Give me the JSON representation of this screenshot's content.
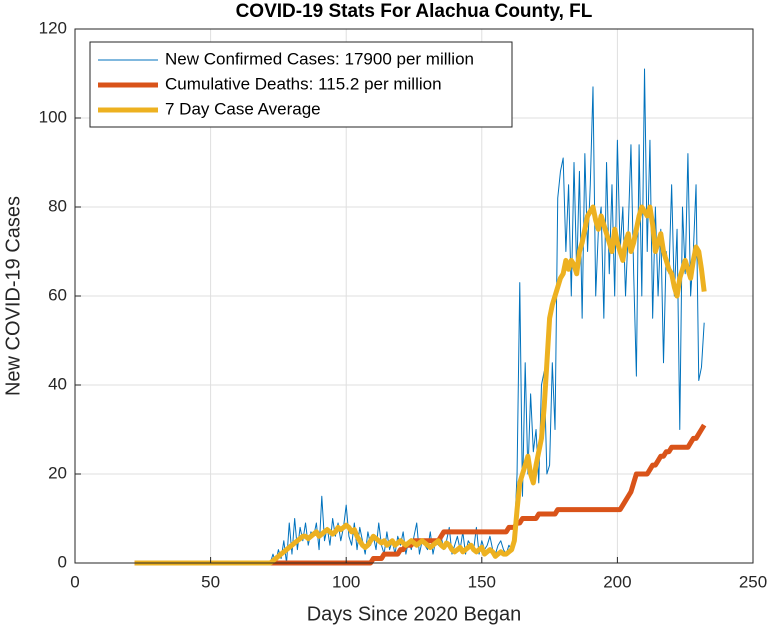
{
  "chart_data": {
    "type": "line",
    "title": "COVID-19 Stats For Alachua County, FL",
    "xlabel": "Days Since 2020 Began",
    "ylabel": "New COVID-19 Cases",
    "xlim": [
      0,
      250
    ],
    "xticks": [
      0,
      50,
      100,
      150,
      200,
      250
    ],
    "ylim": [
      0,
      120
    ],
    "yticks": [
      0,
      20,
      40,
      60,
      80,
      100,
      120
    ],
    "grid": true,
    "legend": "upper left",
    "x": [
      22,
      23,
      24,
      25,
      26,
      27,
      28,
      29,
      30,
      31,
      32,
      33,
      34,
      35,
      36,
      37,
      38,
      39,
      40,
      41,
      42,
      43,
      44,
      45,
      46,
      47,
      48,
      49,
      50,
      51,
      52,
      53,
      54,
      55,
      56,
      57,
      58,
      59,
      60,
      61,
      62,
      63,
      64,
      65,
      66,
      67,
      68,
      69,
      70,
      71,
      72,
      73,
      74,
      75,
      76,
      77,
      78,
      79,
      80,
      81,
      82,
      83,
      84,
      85,
      86,
      87,
      88,
      89,
      90,
      91,
      92,
      93,
      94,
      95,
      96,
      97,
      98,
      99,
      100,
      101,
      102,
      103,
      104,
      105,
      106,
      107,
      108,
      109,
      110,
      111,
      112,
      113,
      114,
      115,
      116,
      117,
      118,
      119,
      120,
      121,
      122,
      123,
      124,
      125,
      126,
      127,
      128,
      129,
      130,
      131,
      132,
      133,
      134,
      135,
      136,
      137,
      138,
      139,
      140,
      141,
      142,
      143,
      144,
      145,
      146,
      147,
      148,
      149,
      150,
      151,
      152,
      153,
      154,
      155,
      156,
      157,
      158,
      159,
      160,
      161,
      162,
      163,
      164,
      165,
      166,
      167,
      168,
      169,
      170,
      171,
      172,
      173,
      174,
      175,
      176,
      177,
      178,
      179,
      180,
      181,
      182,
      183,
      184,
      185,
      186,
      187,
      188,
      189,
      190,
      191,
      192,
      193,
      194,
      195,
      196,
      197,
      198,
      199,
      200,
      201,
      202,
      203,
      204,
      205,
      206,
      207,
      208,
      209,
      210,
      211,
      212,
      213,
      214,
      215,
      216,
      217,
      218,
      219,
      220,
      221,
      222,
      223,
      224,
      225,
      226,
      227,
      228,
      229,
      230,
      231,
      232
    ],
    "series": [
      {
        "name": "New Confirmed Cases: 17900 per million",
        "color": "#0072bd",
        "width": 1,
        "values": [
          0,
          0,
          0,
          0,
          0,
          0,
          0,
          0,
          0,
          0,
          0,
          0,
          0,
          0,
          0,
          0,
          0,
          0,
          0,
          0,
          0,
          0,
          0,
          0,
          0,
          0,
          0,
          0,
          0,
          0,
          0,
          0,
          0,
          0,
          0,
          0,
          0,
          0,
          0,
          0,
          0,
          0,
          0,
          0,
          0,
          0,
          0,
          0,
          0,
          0,
          0,
          2,
          0,
          3,
          1,
          5,
          0,
          9,
          2,
          10,
          3,
          8,
          5,
          9,
          4,
          7,
          6,
          9,
          3,
          15,
          5,
          8,
          4,
          10,
          6,
          9,
          5,
          8,
          13,
          6,
          4,
          9,
          3,
          8,
          5,
          2,
          7,
          4,
          6,
          3,
          9,
          4,
          2,
          7,
          3,
          5,
          2,
          6,
          4,
          7,
          2,
          5,
          3,
          6,
          9,
          2,
          5,
          4,
          3,
          7,
          2,
          5,
          4,
          6,
          3,
          5,
          8,
          2,
          4,
          6,
          3,
          7,
          2,
          5,
          4,
          3,
          8,
          2,
          5,
          3,
          4,
          6,
          3,
          2,
          4,
          5,
          3,
          2,
          4,
          3,
          6,
          20,
          63,
          15,
          45,
          20,
          38,
          25,
          30,
          18,
          40,
          43,
          20,
          22,
          45,
          30,
          82,
          88,
          91,
          70,
          85,
          60,
          90,
          65,
          88,
          55,
          92,
          70,
          85,
          107,
          60,
          75,
          80,
          55,
          90,
          65,
          85,
          60,
          95,
          70,
          80,
          60,
          75,
          94,
          65,
          42,
          94,
          60,
          111,
          70,
          95,
          55,
          80,
          60,
          75,
          45,
          70,
          65,
          85,
          60,
          75,
          30,
          80,
          65,
          92,
          60,
          70,
          85,
          41,
          44,
          54
        ]
      },
      {
        "name": "Cumulative Deaths: 115.2 per million",
        "color": "#d95319",
        "width": 5,
        "values": [
          0,
          0,
          0,
          0,
          0,
          0,
          0,
          0,
          0,
          0,
          0,
          0,
          0,
          0,
          0,
          0,
          0,
          0,
          0,
          0,
          0,
          0,
          0,
          0,
          0,
          0,
          0,
          0,
          0,
          0,
          0,
          0,
          0,
          0,
          0,
          0,
          0,
          0,
          0,
          0,
          0,
          0,
          0,
          0,
          0,
          0,
          0,
          0,
          0,
          0,
          0,
          0,
          0,
          0,
          0,
          0,
          0,
          0,
          0,
          0,
          0,
          0,
          0,
          0,
          0,
          0,
          0,
          0,
          0,
          0,
          0,
          0,
          0,
          0,
          0,
          0,
          0,
          0,
          0,
          0,
          0,
          0,
          0,
          0,
          0,
          0,
          0,
          0,
          1,
          1,
          1,
          1,
          2,
          2,
          2,
          2,
          2,
          2,
          3,
          3,
          4,
          4,
          4,
          5,
          5,
          5,
          5,
          5,
          5,
          5,
          5,
          5,
          5,
          6,
          7,
          7,
          7,
          7,
          7,
          7,
          7,
          7,
          7,
          7,
          7,
          7,
          7,
          7,
          7,
          7,
          7,
          7,
          7,
          7,
          7,
          7,
          7,
          7,
          8,
          8,
          8,
          9,
          9,
          10,
          10,
          10,
          10,
          10,
          10,
          11,
          11,
          11,
          11,
          11,
          11,
          11,
          12,
          12,
          12,
          12,
          12,
          12,
          12,
          12,
          12,
          12,
          12,
          12,
          12,
          12,
          12,
          12,
          12,
          12,
          12,
          12,
          12,
          12,
          12,
          12,
          13,
          14,
          15,
          16,
          18,
          20,
          20,
          20,
          20,
          20,
          21,
          22,
          22,
          23,
          24,
          24,
          25,
          25,
          26,
          26,
          26,
          26,
          26,
          26,
          26,
          27,
          28,
          28,
          29,
          30,
          31
        ]
      },
      {
        "name": "7 Day Case Average",
        "color": "#edb120",
        "width": 5,
        "values": [
          0,
          0,
          0,
          0,
          0,
          0,
          0,
          0,
          0,
          0,
          0,
          0,
          0,
          0,
          0,
          0,
          0,
          0,
          0,
          0,
          0,
          0,
          0,
          0,
          0,
          0,
          0,
          0,
          0,
          0,
          0,
          0,
          0,
          0,
          0,
          0,
          0,
          0,
          0,
          0,
          0,
          0,
          0,
          0,
          0,
          0,
          0,
          0,
          0,
          0,
          0,
          0.5,
          1,
          1.5,
          2,
          2.5,
          3,
          3.5,
          4,
          4.5,
          5,
          5.5,
          6,
          6,
          5.5,
          6,
          6.5,
          7,
          6,
          6.5,
          7,
          7.5,
          7,
          6.5,
          7,
          8,
          7.5,
          8,
          8.5,
          8,
          7,
          7.5,
          6,
          5,
          4,
          3.5,
          4,
          5,
          6,
          5.5,
          5,
          4.5,
          5,
          4,
          4.5,
          5,
          4,
          4.5,
          5,
          4.5,
          4,
          4.5,
          5,
          4.5,
          4,
          4.5,
          5,
          4.5,
          4,
          3.5,
          4,
          4.5,
          5,
          4,
          3.5,
          4.5,
          4,
          3,
          2.5,
          3,
          3.5,
          2.5,
          3,
          3.5,
          4,
          3,
          2.5,
          3,
          3.5,
          2,
          2.5,
          3,
          2.5,
          1.5,
          2,
          2.5,
          2,
          2,
          2.5,
          3,
          5,
          12,
          18,
          20,
          22,
          24,
          20,
          18,
          22,
          25,
          28,
          35,
          45,
          55,
          58,
          60,
          62,
          64,
          65,
          68,
          66,
          68,
          67,
          65,
          70,
          72,
          75,
          78,
          79,
          80,
          77,
          75,
          78,
          76,
          74,
          72,
          70,
          75,
          72,
          70,
          68,
          72,
          74,
          70,
          72,
          75,
          78,
          80,
          79,
          78,
          80,
          76,
          70,
          72,
          74,
          70,
          68,
          66,
          65,
          62,
          60,
          64,
          66,
          68,
          66,
          64,
          68,
          71,
          70,
          66,
          61
        ]
      }
    ]
  }
}
